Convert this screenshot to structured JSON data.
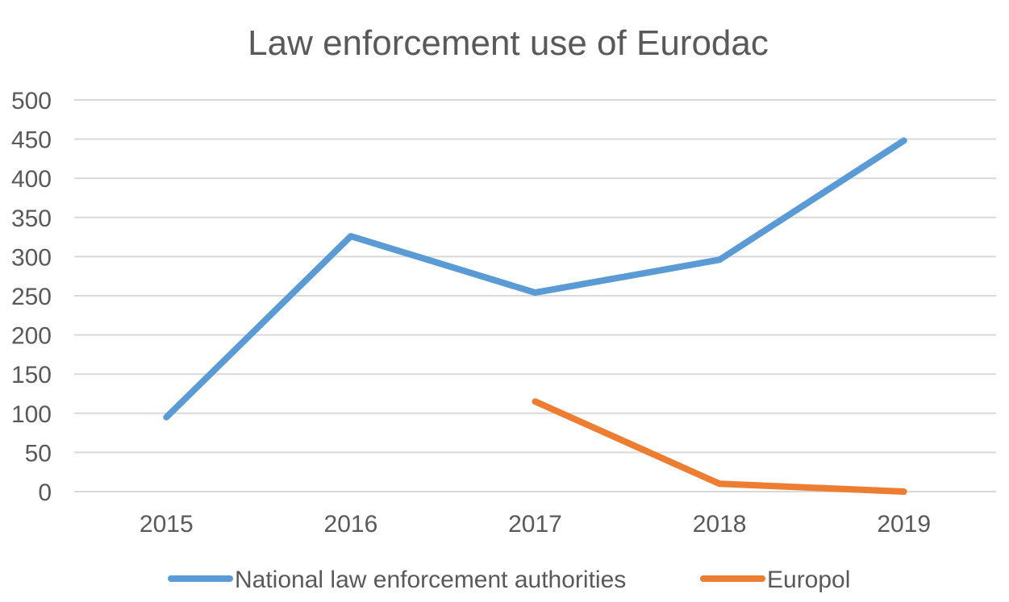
{
  "chart_data": {
    "type": "line",
    "title": "Law enforcement use of Eurodac",
    "xlabel": "",
    "ylabel": "",
    "categories": [
      "2015",
      "2016",
      "2017",
      "2018",
      "2019"
    ],
    "ylim": [
      0,
      500
    ],
    "yticks": [
      0,
      50,
      100,
      150,
      200,
      250,
      300,
      350,
      400,
      450,
      500
    ],
    "grid": true,
    "legend_position": "bottom",
    "series": [
      {
        "name": "National law enforcement authorities",
        "color": "#5b9bd5",
        "values": [
          95,
          326,
          254,
          296,
          448
        ]
      },
      {
        "name": "Europol",
        "color": "#ed7d31",
        "values": [
          null,
          null,
          115,
          10,
          0
        ]
      }
    ]
  }
}
